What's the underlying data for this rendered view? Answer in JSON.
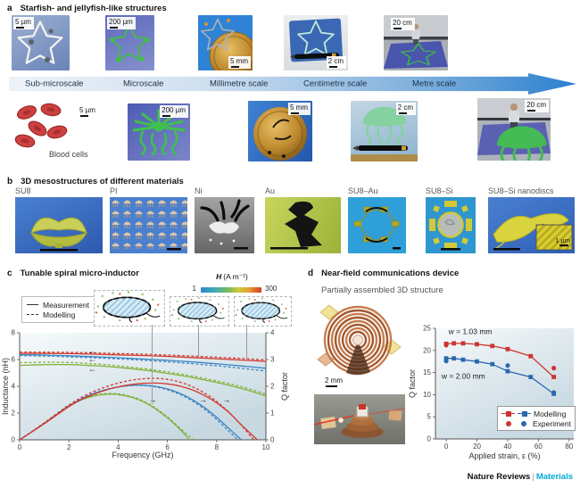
{
  "figure": {
    "footer": {
      "brand": "Nature Reviews",
      "sep": "|",
      "journal": "Materials"
    }
  },
  "panel_a": {
    "tag": "a",
    "title": "Starfish- and jellyfish-like structures",
    "row1": [
      {
        "scale": "5 µm",
        "label": "Sub-microscale"
      },
      {
        "scale": "200 µm",
        "label": "Microscale"
      },
      {
        "scale": "5 mm",
        "label": "Millimetre scale"
      },
      {
        "scale": "2 cm",
        "label": "Centimetre scale"
      },
      {
        "scale": "20 cm",
        "label": "Metre scale"
      }
    ],
    "row2": [
      {
        "scale": "5 µm"
      },
      {
        "scale": "200 µm"
      },
      {
        "scale": "5 mm"
      },
      {
        "scale": "2 cm"
      },
      {
        "scale": "20 cm"
      }
    ],
    "blood_caption": "Blood cells"
  },
  "panel_b": {
    "tag": "b",
    "title": "3D mesostructures of different materials",
    "items": [
      {
        "label": "SU8"
      },
      {
        "label": "PI"
      },
      {
        "label": "Ni"
      },
      {
        "label": "Au"
      },
      {
        "label": "SU8–Au"
      },
      {
        "label": "SU8–Si"
      },
      {
        "label": "SU8–Si nanodiscs"
      }
    ],
    "inset_scale": "1 µm"
  },
  "panel_c": {
    "tag": "c",
    "title": "Tunable spiral micro-inductor",
    "legend": {
      "measurement": "Measurement",
      "modelling": "Modelling"
    },
    "colorbar": {
      "symbol": "H",
      "units": "(A m⁻¹)",
      "min": "1",
      "max": "300"
    },
    "chart_data": {
      "type": "line",
      "xlabel": "Frequency (GHz)",
      "ylabel_left": "Inductance (nH)",
      "ylabel_right": "Q factor",
      "xlim": [
        0,
        10
      ],
      "ylim_left": [
        0,
        8
      ],
      "ylim_right": [
        0,
        4
      ],
      "xticks": [
        0,
        2,
        4,
        6,
        8,
        10
      ],
      "yticks_left": [
        0,
        2,
        4,
        6,
        8
      ],
      "yticks_right": [
        0,
        1,
        2,
        3,
        4
      ],
      "series": [
        {
          "name": "inductance-green-modelling",
          "axis": "left",
          "color": "#83b23e",
          "dash": true,
          "smooth": true,
          "x": [
            0,
            1,
            2,
            3,
            4,
            5,
            6,
            7,
            8,
            9,
            10
          ],
          "y": [
            5.76,
            5.8,
            5.78,
            5.68,
            5.53,
            5.33,
            5.08,
            4.77,
            4.4,
            3.97,
            3.42
          ]
        },
        {
          "name": "inductance-green-measurement",
          "axis": "left",
          "color": "#83b23e",
          "dash": false,
          "smooth": true,
          "x": [
            0,
            1,
            2,
            3,
            4,
            5,
            6,
            7,
            8,
            9,
            10
          ],
          "y": [
            5.56,
            5.62,
            5.62,
            5.54,
            5.41,
            5.22,
            4.97,
            4.66,
            4.28,
            3.84,
            3.28
          ]
        },
        {
          "name": "inductance-blue-modelling",
          "axis": "left",
          "color": "#3c85c4",
          "dash": true,
          "smooth": true,
          "x": [
            0,
            1,
            2,
            3,
            4,
            5,
            6,
            7,
            8,
            9,
            10
          ],
          "y": [
            6.3,
            6.26,
            6.2,
            6.13,
            6.05,
            5.95,
            5.83,
            5.69,
            5.53,
            5.35,
            5.14
          ]
        },
        {
          "name": "inductance-blue-measurement",
          "axis": "left",
          "color": "#3c85c4",
          "dash": false,
          "smooth": true,
          "x": [
            0,
            1,
            2,
            3,
            4,
            5,
            6,
            7,
            8,
            9,
            10
          ],
          "y": [
            6.36,
            6.33,
            6.28,
            6.21,
            6.13,
            6.04,
            5.94,
            5.82,
            5.68,
            5.52,
            5.35
          ]
        },
        {
          "name": "inductance-red-modelling",
          "axis": "left",
          "color": "#d2382e",
          "dash": true,
          "smooth": true,
          "x": [
            0,
            1,
            2,
            3,
            4,
            5,
            6,
            7,
            8,
            9,
            10
          ],
          "y": [
            6.56,
            6.55,
            6.53,
            6.5,
            6.45,
            6.4,
            6.33,
            6.26,
            6.17,
            6.08,
            5.97
          ]
        },
        {
          "name": "inductance-red-measurement",
          "axis": "left",
          "color": "#d2382e",
          "dash": false,
          "smooth": true,
          "x": [
            0,
            1,
            2,
            3,
            4,
            5,
            6,
            7,
            8,
            9,
            10
          ],
          "y": [
            6.46,
            6.46,
            6.44,
            6.4,
            6.35,
            6.3,
            6.23,
            6.15,
            6.06,
            5.96,
            5.86
          ]
        },
        {
          "name": "qfactor-green-modelling",
          "axis": "right",
          "color": "#83b23e",
          "dash": true,
          "smooth": true,
          "x": [
            0,
            0.5,
            1,
            1.5,
            2,
            2.5,
            3,
            3.5,
            4,
            4.5,
            5,
            5.5,
            6,
            6.5,
            7.05
          ],
          "y": [
            0,
            0.31,
            0.64,
            0.97,
            1.3,
            1.52,
            1.66,
            1.73,
            1.72,
            1.63,
            1.46,
            1.2,
            0.86,
            0.45,
            0
          ]
        },
        {
          "name": "qfactor-green-measurement",
          "axis": "right",
          "color": "#83b23e",
          "dash": false,
          "smooth": true,
          "x": [
            0,
            0.5,
            1,
            1.5,
            2,
            2.5,
            3,
            3.5,
            4,
            4.5,
            5,
            5.5,
            6,
            6.5,
            6.9
          ],
          "y": [
            0,
            0.3,
            0.62,
            0.95,
            1.27,
            1.49,
            1.63,
            1.7,
            1.69,
            1.6,
            1.43,
            1.17,
            0.82,
            0.4,
            0
          ]
        },
        {
          "name": "qfactor-blue-modelling",
          "axis": "right",
          "color": "#3c85c4",
          "dash": true,
          "smooth": true,
          "x": [
            0,
            0.5,
            1,
            1.5,
            2,
            2.5,
            3,
            3.5,
            4,
            4.5,
            5,
            5.5,
            6,
            6.5,
            7,
            7.5,
            8,
            8.5,
            8.85
          ],
          "y": [
            0,
            0.3,
            0.62,
            0.95,
            1.28,
            1.54,
            1.73,
            1.88,
            1.98,
            2.03,
            2.03,
            1.98,
            1.87,
            1.7,
            1.46,
            1.15,
            0.76,
            0.32,
            0
          ]
        },
        {
          "name": "qfactor-blue-measurement",
          "axis": "right",
          "color": "#3c85c4",
          "dash": false,
          "smooth": true,
          "x": [
            0,
            0.5,
            1,
            1.5,
            2,
            2.5,
            3,
            3.5,
            4,
            4.5,
            5,
            5.5,
            6,
            6.5,
            7,
            7.5,
            8,
            8.5,
            9
          ],
          "y": [
            0,
            0.3,
            0.61,
            0.94,
            1.26,
            1.52,
            1.72,
            1.87,
            1.97,
            2.03,
            2.04,
            2.0,
            1.9,
            1.74,
            1.51,
            1.21,
            0.84,
            0.42,
            0
          ]
        },
        {
          "name": "qfactor-red-modelling",
          "axis": "right",
          "color": "#d2382e",
          "dash": true,
          "smooth": true,
          "x": [
            0,
            0.5,
            1,
            1.5,
            2,
            2.5,
            3,
            3.5,
            4,
            4.5,
            5,
            5.5,
            6,
            6.5,
            7,
            7.5,
            8,
            8.5,
            9,
            9.5
          ],
          "y": [
            0,
            0.31,
            0.63,
            0.97,
            1.3,
            1.58,
            1.8,
            1.98,
            2.12,
            2.22,
            2.28,
            2.3,
            2.26,
            2.16,
            1.99,
            1.75,
            1.43,
            1.03,
            0.55,
            0
          ]
        },
        {
          "name": "qfactor-red-measurement",
          "axis": "right",
          "color": "#d2382e",
          "dash": false,
          "smooth": true,
          "x": [
            0,
            0.5,
            1,
            1.5,
            2,
            2.5,
            3,
            3.5,
            4,
            4.5,
            5,
            5.5,
            6,
            6.5,
            7,
            7.5,
            8,
            8.5,
            9,
            9.65
          ],
          "y": [
            0,
            0.3,
            0.6,
            0.92,
            1.24,
            1.5,
            1.7,
            1.86,
            1.98,
            2.06,
            2.11,
            2.12,
            2.09,
            2.01,
            1.87,
            1.66,
            1.38,
            1.02,
            0.56,
            0
          ]
        }
      ],
      "arrows": [
        {
          "x": 2.95,
          "y": 6.62,
          "axis": "left",
          "dir": "left"
        },
        {
          "x": 2.95,
          "y": 6.02,
          "axis": "left",
          "dir": "left"
        },
        {
          "x": 2.95,
          "y": 5.3,
          "axis": "left",
          "dir": "left"
        },
        {
          "x": 5.4,
          "y": 1.5,
          "axis": "right",
          "dir": "right"
        },
        {
          "x": 7.45,
          "y": 1.5,
          "axis": "right",
          "dir": "right"
        },
        {
          "x": 8.4,
          "y": 1.5,
          "axis": "right",
          "dir": "right"
        }
      ]
    }
  },
  "panel_d": {
    "tag": "d",
    "title": "Near-field communications device",
    "subtitle": "Partially assembled 3D structure",
    "scale": "2 mm",
    "legend": {
      "modelling": "Modelling",
      "experiment": "Experiment"
    },
    "chart_data": {
      "type": "scatter-line",
      "xlabel": "Applied strain, ε (%)",
      "ylabel_left": "Q factor",
      "xlim": [
        -7,
        83
      ],
      "ylim_left": [
        0,
        25
      ],
      "xticks": [
        0,
        20,
        40,
        60,
        80
      ],
      "yticks_left": [
        0,
        5,
        10,
        15,
        20,
        25
      ],
      "annotations": [
        {
          "text": "w = 1.03 mm",
          "x": 1.5,
          "y": 23.7
        },
        {
          "text": "w = 2.00 mm",
          "x": -3,
          "y": 13.6
        }
      ],
      "series": [
        {
          "name": "modelling-w-1.03mm",
          "color": "#cf3330",
          "marker": "square",
          "smooth": false,
          "x": [
            0,
            5,
            11,
            20,
            30,
            40,
            55,
            70
          ],
          "y": [
            21.5,
            21.6,
            21.6,
            21.4,
            21.0,
            20.3,
            18.7,
            14.0
          ]
        },
        {
          "name": "modelling-w-2.00mm",
          "color": "#2a68b0",
          "marker": "square",
          "smooth": false,
          "x": [
            0,
            5,
            11,
            20,
            30,
            40,
            55,
            70
          ],
          "y": [
            18.2,
            18.2,
            17.9,
            17.5,
            16.9,
            15.3,
            14.0,
            10.2
          ]
        },
        {
          "name": "experiment-w-1.03mm",
          "color": "#cf3330",
          "marker": "circle",
          "line": false,
          "x": [
            0,
            70
          ],
          "y": [
            21.2,
            16.0
          ]
        },
        {
          "name": "experiment-w-2.00mm",
          "color": "#2a68b0",
          "marker": "circle",
          "line": false,
          "x": [
            0,
            40,
            70
          ],
          "y": [
            17.6,
            16.6,
            10.5
          ]
        }
      ]
    }
  }
}
